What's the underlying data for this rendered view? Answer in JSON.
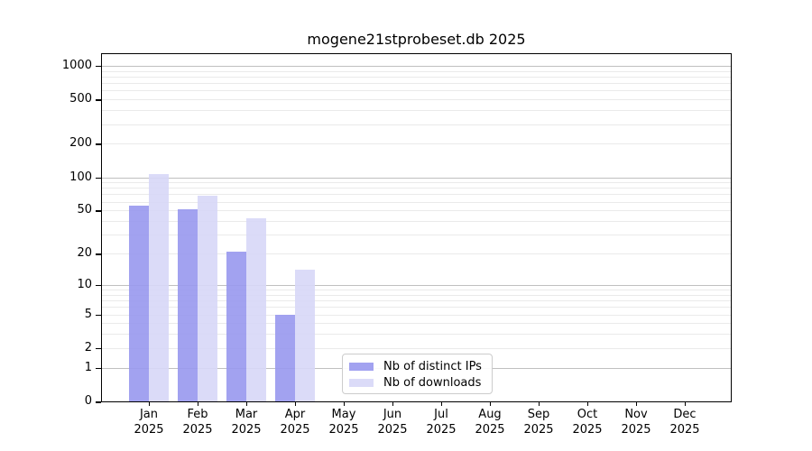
{
  "chart_data": {
    "type": "bar",
    "title": "mogene21stprobeset.db 2025",
    "categories": [
      "Jan",
      "Feb",
      "Mar",
      "Apr",
      "May",
      "Jun",
      "Jul",
      "Aug",
      "Sep",
      "Oct",
      "Nov",
      "Dec"
    ],
    "year_label": "2025",
    "series": [
      {
        "name": "Nb of distinct IPs",
        "color": "#9898ee",
        "values": [
          55,
          51,
          21,
          5,
          null,
          null,
          null,
          null,
          null,
          null,
          null,
          null
        ]
      },
      {
        "name": "Nb of downloads",
        "color": "#d7d7f7",
        "values": [
          106,
          68,
          42,
          14,
          null,
          null,
          null,
          null,
          null,
          null,
          null,
          null
        ]
      }
    ],
    "y_ticks": [
      0,
      1,
      2,
      5,
      10,
      20,
      50,
      100,
      200,
      500,
      1000
    ],
    "y_scale": "log10(1+x)",
    "ylim": [
      0,
      1270
    ],
    "grid": true,
    "legend_position": "bottom-center",
    "colors": {
      "grid_major": "#c0c0c0",
      "grid_minor": "#eaeaea",
      "axis": "#000000",
      "background": "#ffffff",
      "legend_border": "#cccccc"
    }
  }
}
